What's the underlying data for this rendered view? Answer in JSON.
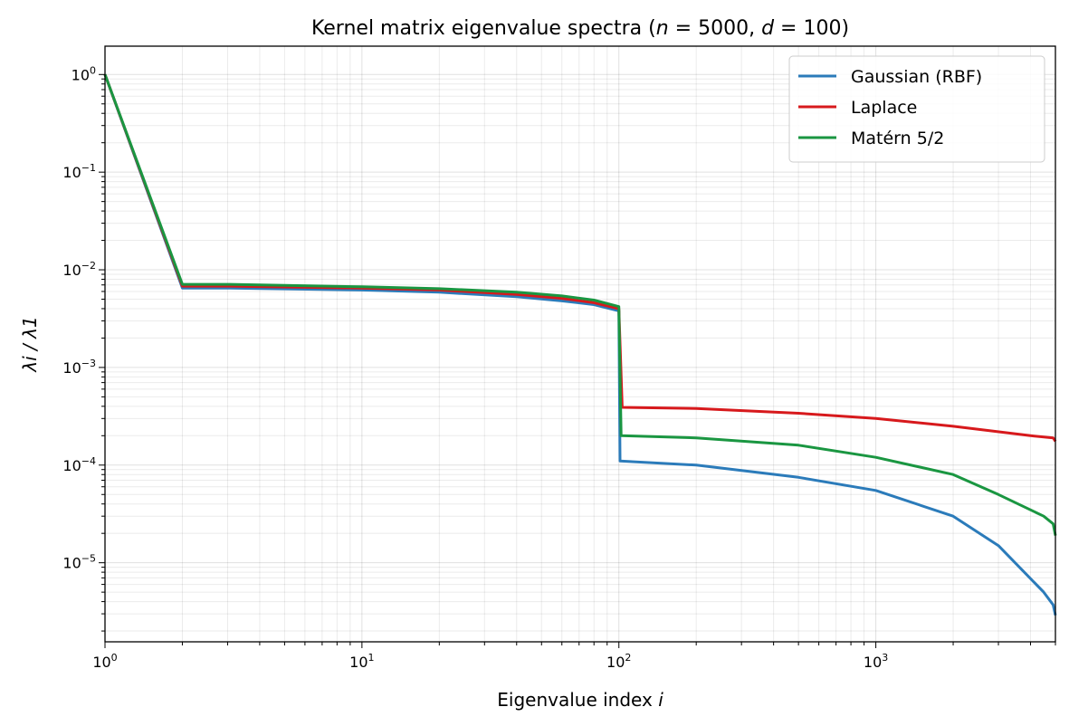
{
  "chart_data": {
    "type": "line",
    "title": "Kernel matrix eigenvalue spectra (n = 5000,  d = 100)",
    "title_parts": {
      "pre": "Kernel matrix eigenvalue spectra (",
      "n": "n",
      "nval": " = 5000,  ",
      "d": "d",
      "dval": " = 100)"
    },
    "xlabel": "Eigenvalue index i",
    "xlabel_parts": {
      "text": "Eigenvalue index ",
      "var": "i"
    },
    "ylabel": "λi / λ1",
    "xscale": "log",
    "yscale": "log",
    "xlim": [
      1,
      5000
    ],
    "ylim": [
      1.55e-06,
      1.95
    ],
    "grid": true,
    "legend_position": "top-right",
    "x_ticks": [
      {
        "base": "10",
        "exp": "0",
        "v": 1
      },
      {
        "base": "10",
        "exp": "1",
        "v": 10
      },
      {
        "base": "10",
        "exp": "2",
        "v": 100
      },
      {
        "base": "10",
        "exp": "3",
        "v": 1000
      }
    ],
    "y_ticks": [
      {
        "base": "10",
        "exp": "0",
        "v": 1
      },
      {
        "base": "10",
        "exp": "−1",
        "v": 0.1
      },
      {
        "base": "10",
        "exp": "−2",
        "v": 0.01
      },
      {
        "base": "10",
        "exp": "−3",
        "v": 0.001
      },
      {
        "base": "10",
        "exp": "−4",
        "v": 0.0001
      },
      {
        "base": "10",
        "exp": "−5",
        "v": 1e-05
      }
    ],
    "series": [
      {
        "name": "Gaussian (RBF)",
        "color": "#2b7bba",
        "x": [
          1,
          2,
          3,
          10,
          20,
          40,
          60,
          80,
          100,
          101,
          200,
          500,
          1000,
          2000,
          3000,
          4500,
          4900,
          5000
        ],
        "y": [
          1,
          0.0065,
          0.0065,
          0.0062,
          0.0059,
          0.0053,
          0.0048,
          0.0044,
          0.0038,
          0.00011,
          0.0001,
          7.5e-05,
          5.5e-05,
          3e-05,
          1.5e-05,
          5e-06,
          3.7e-06,
          2.9e-06
        ]
      },
      {
        "name": "Laplace",
        "color": "#d7191c",
        "x": [
          1,
          2,
          3,
          10,
          20,
          40,
          60,
          80,
          100,
          103,
          200,
          500,
          1000,
          2000,
          4000,
          4900,
          5000
        ],
        "y": [
          1,
          0.0068,
          0.0068,
          0.0065,
          0.0062,
          0.0056,
          0.0051,
          0.0046,
          0.004,
          0.00039,
          0.00038,
          0.00034,
          0.0003,
          0.00025,
          0.0002,
          0.00019,
          0.000175
        ]
      },
      {
        "name": "Matérn 5/2",
        "color": "#1a9641",
        "x": [
          1,
          2,
          3,
          10,
          20,
          40,
          60,
          80,
          100,
          102,
          200,
          500,
          1000,
          2000,
          3000,
          4500,
          4900,
          5000
        ],
        "y": [
          1,
          0.0071,
          0.0071,
          0.0067,
          0.0064,
          0.0059,
          0.0054,
          0.0049,
          0.0042,
          0.0002,
          0.00019,
          0.00016,
          0.00012,
          8e-05,
          5e-05,
          3e-05,
          2.5e-05,
          1.9e-05
        ]
      }
    ]
  }
}
